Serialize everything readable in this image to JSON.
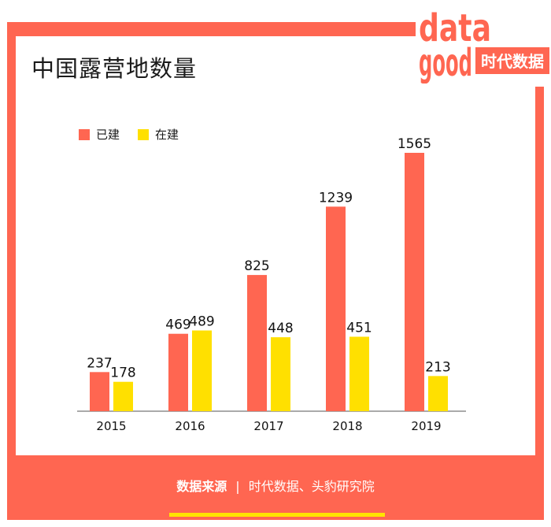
{
  "title": "中国露营地数量",
  "logo": {
    "top_text": "data",
    "bottom_text": "good",
    "brand_text": "时代数据"
  },
  "colors": {
    "built": "#ff6651",
    "building": "#ffe000",
    "frame": "#ff6651",
    "accent_line": "#ffe400"
  },
  "chart_data": {
    "type": "bar",
    "title": "中国露营地数量",
    "categories": [
      "2015",
      "2016",
      "2017",
      "2018",
      "2019"
    ],
    "series": [
      {
        "name": "已建",
        "values": [
          237,
          469,
          825,
          1239,
          1565
        ]
      },
      {
        "name": "在建",
        "values": [
          178,
          489,
          448,
          451,
          213
        ]
      }
    ],
    "xlabel": "",
    "ylabel": "",
    "ylim": [
      0,
      1565
    ],
    "legend_position": "top-left",
    "grid": false
  },
  "source": {
    "label": "数据来源",
    "separator": "|",
    "text": "时代数据、头豹研究院"
  }
}
